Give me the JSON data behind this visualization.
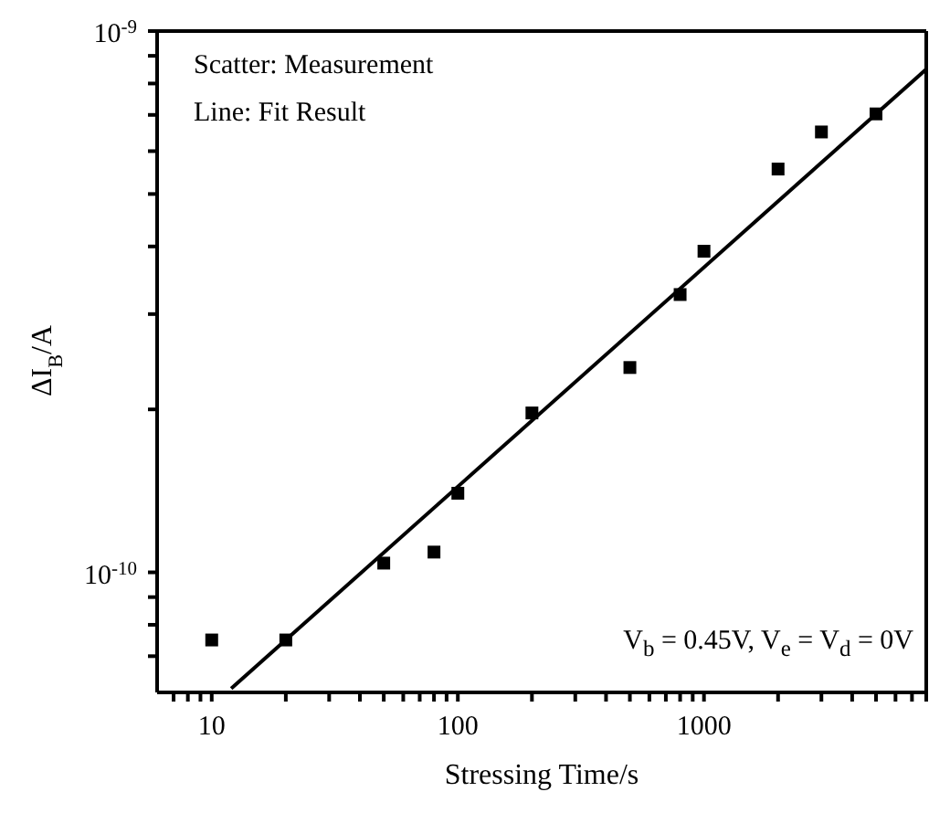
{
  "chart_data": {
    "type": "scatter",
    "xlabel": "Stressing Time/s",
    "ylabel": "ΔI$_{B}$/A",
    "log": "xy",
    "xlim": [
      6,
      8000
    ],
    "xticks": [
      {
        "value": 7,
        "label": null
      },
      {
        "value": 8,
        "label": null
      },
      {
        "value": 9,
        "label": null
      },
      10,
      {
        "value": 20,
        "label": null
      },
      {
        "value": 30,
        "label": null
      },
      {
        "value": 40,
        "label": null
      },
      {
        "value": 50,
        "label": null
      },
      {
        "value": 60,
        "label": null
      },
      {
        "value": 70,
        "label": null
      },
      {
        "value": 80,
        "label": null
      },
      {
        "value": 90,
        "label": null
      },
      100,
      {
        "value": 200,
        "label": null
      },
      {
        "value": 300,
        "label": null
      },
      {
        "value": 400,
        "label": null
      },
      {
        "value": 500,
        "label": null
      },
      {
        "value": 600,
        "label": null
      },
      {
        "value": 700,
        "label": null
      },
      {
        "value": 800,
        "label": null
      },
      {
        "value": 900,
        "label": null
      },
      1000,
      {
        "value": 2000,
        "label": null
      },
      {
        "value": 3000,
        "label": null
      },
      {
        "value": 4000,
        "label": null
      },
      {
        "value": 5000,
        "label": null
      },
      {
        "value": 6000,
        "label": null
      },
      {
        "value": 7000,
        "label": null
      },
      {
        "value": 8000,
        "label": null
      }
    ],
    "ylim": [
      6e-11,
      1e-09
    ],
    "yticks": [
      {
        "value": 7e-11,
        "label": null
      },
      {
        "value": 8e-11,
        "label": null
      },
      {
        "value": 9e-11,
        "label": null
      },
      {
        "value": 1e-10,
        "label": "10$^{-10}$"
      },
      {
        "value": 2e-10,
        "label": null
      },
      {
        "value": 3e-10,
        "label": null
      },
      {
        "value": 4e-10,
        "label": null
      },
      {
        "value": 5e-10,
        "label": null
      },
      {
        "value": 6e-10,
        "label": null
      },
      {
        "value": 7e-10,
        "label": null
      },
      {
        "value": 8e-10,
        "label": null
      },
      {
        "value": 9e-10,
        "label": null
      },
      {
        "value": 1e-09,
        "label": "10$^{-9}$"
      }
    ],
    "series": [
      {
        "color": "#000000",
        "marker": "square",
        "x": [
          10,
          20,
          50,
          80,
          100,
          200,
          500,
          800,
          1000,
          2000,
          3000,
          5000
        ],
        "values": [
          7.5e-11,
          7.5e-11,
          1.04e-10,
          1.09e-10,
          1.4e-10,
          1.97e-10,
          2.39e-10,
          3.26e-10,
          3.92e-10,
          5.56e-10,
          6.51e-10,
          7.03e-10
        ]
      },
      {
        "type": "line",
        "color": "#000000",
        "marker": "none",
        "line_style": "solid",
        "x": [
          12,
          8000
        ],
        "values": [
          6.1e-11,
          8.5e-10
        ]
      }
    ],
    "annotations": [
      "Scatter: Measurement",
      "Line: Fit Result",
      "V$_{b}$ = 0.45V,  V$_{e}$ = V$_{d}$ = 0V"
    ]
  }
}
